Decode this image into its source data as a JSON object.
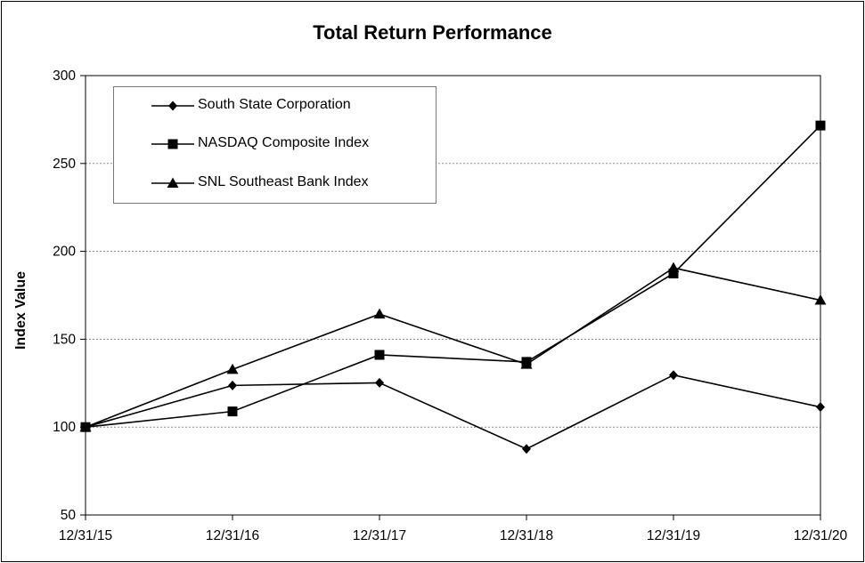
{
  "chart_data": {
    "type": "line",
    "title": "Total Return Performance",
    "xlabel": "",
    "ylabel": "Index Value",
    "categories": [
      "12/31/15",
      "12/31/16",
      "12/31/17",
      "12/31/18",
      "12/31/19",
      "12/31/20"
    ],
    "ylim": [
      50,
      300
    ],
    "yticks": [
      "50",
      "100",
      "150",
      "200",
      "250",
      "300"
    ],
    "grid": "horizontal dotted",
    "legend_position": "top-left",
    "series": [
      {
        "name": "South State Corporation",
        "marker": "diamond",
        "values": [
          100,
          123.7,
          125.2,
          87.6,
          129.6,
          111.4
        ]
      },
      {
        "name": "NASDAQ Composite Index",
        "marker": "square",
        "values": [
          100,
          108.9,
          141.1,
          137.1,
          187.4,
          271.6
        ]
      },
      {
        "name": "SNL Southeast Bank Index",
        "marker": "triangle",
        "values": [
          100,
          132.8,
          164.3,
          135.7,
          190.6,
          172.2
        ]
      }
    ]
  }
}
